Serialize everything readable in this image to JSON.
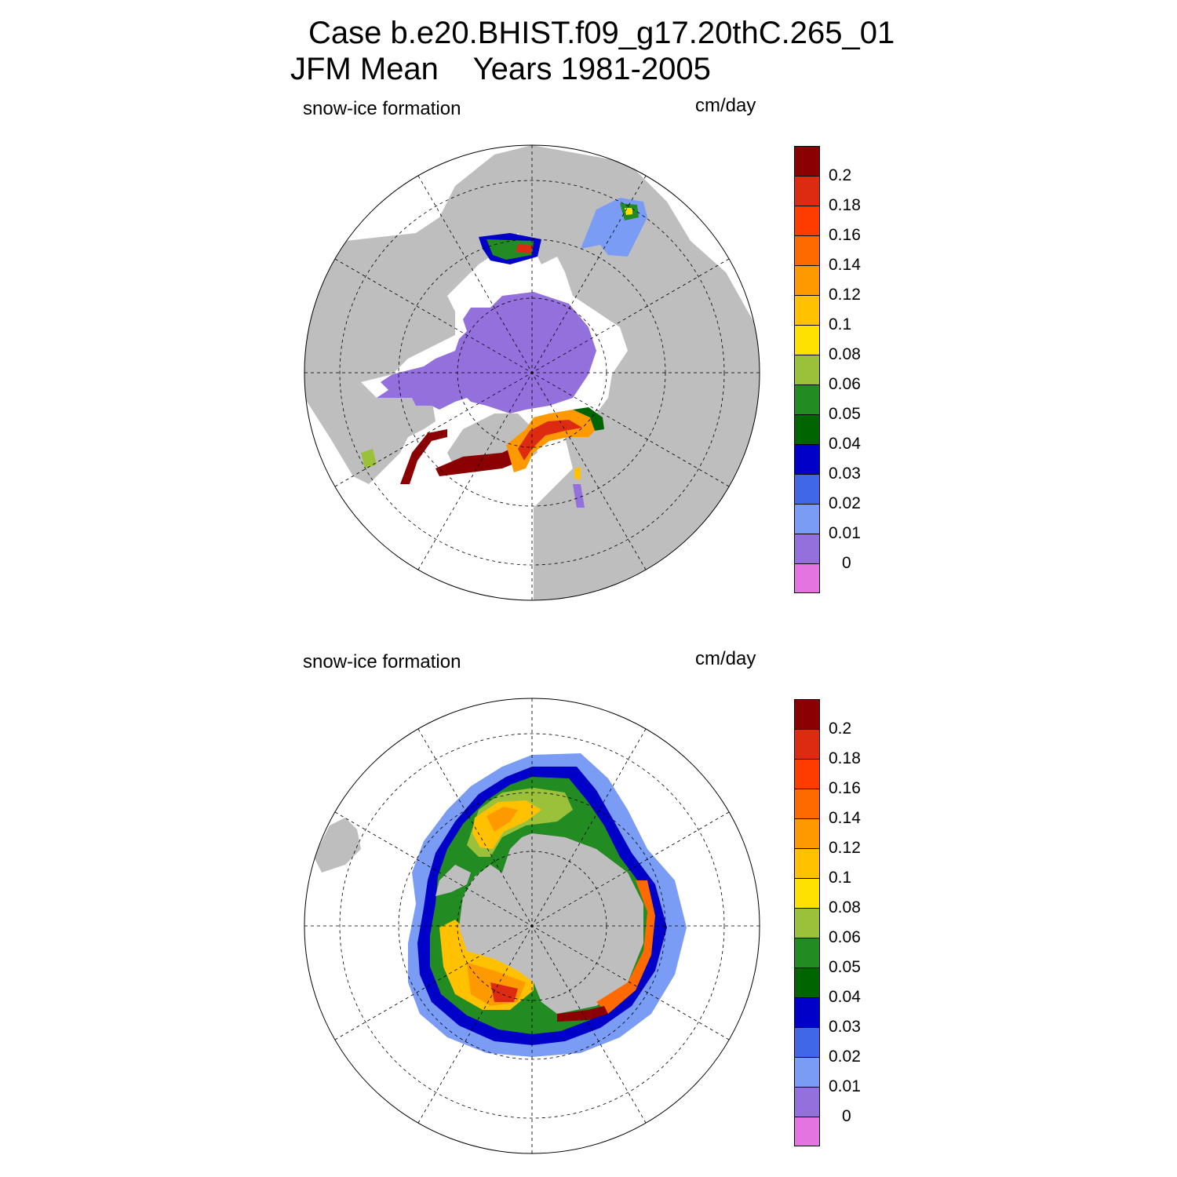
{
  "title": {
    "line1": "Case b.e20.BHIST.f09_g17.20thC.265_01",
    "line2": "JFM Mean    Years 1981-2005"
  },
  "panels": [
    {
      "id": "north",
      "left_label": "snow-ice formation",
      "right_label": "cm/day",
      "hemisphere": "northern"
    },
    {
      "id": "south",
      "left_label": "snow-ice formation",
      "right_label": "cm/day",
      "hemisphere": "southern"
    }
  ],
  "colorbar": {
    "levels": [
      "0.2",
      "0.18",
      "0.16",
      "0.14",
      "0.12",
      "0.1",
      "0.08",
      "0.06",
      "0.05",
      "0.04",
      "0.03",
      "0.02",
      "0.01",
      "0"
    ],
    "colors": [
      "#8b0000",
      "#dd2b12",
      "#ff3c00",
      "#ff6a00",
      "#ff9900",
      "#ffc100",
      "#ffe100",
      "#9bc13a",
      "#228b22",
      "#006400",
      "#0000c8",
      "#3f67e6",
      "#7b9cf5",
      "#9370db",
      "#e374e0"
    ]
  },
  "colors": {
    "land": "#bebebe",
    "ocean_no_data": "#ffffff",
    "grid": "#000000"
  }
}
